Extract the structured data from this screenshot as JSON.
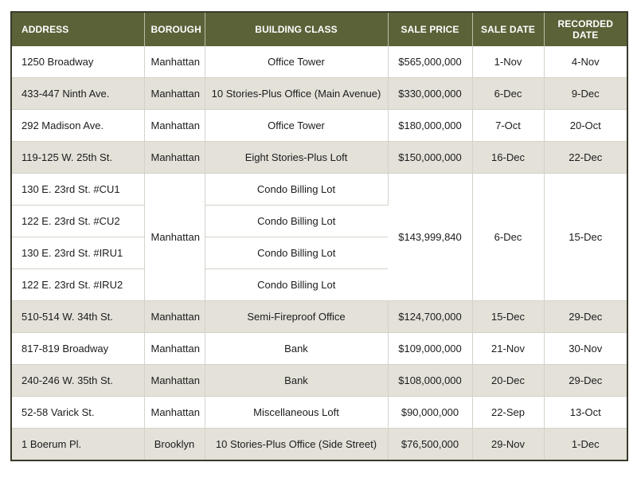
{
  "headers": {
    "address": "ADDRESS",
    "borough": "BOROUGH",
    "building_class": "BUILDING CLASS",
    "sale_price": "SALE PRICE",
    "sale_date": "SALE DATE",
    "recorded_date": "RECORDED DATE"
  },
  "rows": [
    {
      "address": "1250 Broadway",
      "borough": "Manhattan",
      "building_class": "Office Tower",
      "sale_price": "$565,000,000",
      "sale_date": "1-Nov",
      "recorded_date": "4-Nov"
    },
    {
      "address": "433-447 Ninth Ave.",
      "borough": "Manhattan",
      "building_class": "10 Stories-Plus Office (Main Avenue)",
      "sale_price": "$330,000,000",
      "sale_date": "6-Dec",
      "recorded_date": "9-Dec"
    },
    {
      "address": "292 Madison Ave.",
      "borough": "Manhattan",
      "building_class": "Office Tower",
      "sale_price": "$180,000,000",
      "sale_date": "7-Oct",
      "recorded_date": "20-Oct"
    },
    {
      "address": "119-125 W. 25th St.",
      "borough": "Manhattan",
      "building_class": "Eight Stories-Plus Loft",
      "sale_price": "$150,000,000",
      "sale_date": "16-Dec",
      "recorded_date": "22-Dec"
    }
  ],
  "group": {
    "borough": "Manhattan",
    "sale_price": "$143,999,840",
    "sale_date": "6-Dec",
    "recorded_date": "15-Dec",
    "items": [
      {
        "address": "130 E. 23rd St. #CU1",
        "building_class": "Condo Billing Lot"
      },
      {
        "address": "122 E. 23rd St. #CU2",
        "building_class": "Condo Billing Lot"
      },
      {
        "address": "130 E. 23rd St. #IRU1",
        "building_class": "Condo Billing Lot"
      },
      {
        "address": "122 E. 23rd St. #IRU2",
        "building_class": "Condo Billing Lot"
      }
    ]
  },
  "rows_after": [
    {
      "address": "510-514 W. 34th St.",
      "borough": "Manhattan",
      "building_class": "Semi-Fireproof Office",
      "sale_price": "$124,700,000",
      "sale_date": "15-Dec",
      "recorded_date": "29-Dec"
    },
    {
      "address": "817-819 Broadway",
      "borough": "Manhattan",
      "building_class": "Bank",
      "sale_price": "$109,000,000",
      "sale_date": "21-Nov",
      "recorded_date": "30-Nov"
    },
    {
      "address": "240-246 W. 35th St.",
      "borough": "Manhattan",
      "building_class": "Bank",
      "sale_price": "$108,000,000",
      "sale_date": "20-Dec",
      "recorded_date": "29-Dec"
    },
    {
      "address": "52-58 Varick St.",
      "borough": "Manhattan",
      "building_class": "Miscellaneous Loft",
      "sale_price": "$90,000,000",
      "sale_date": "22-Sep",
      "recorded_date": "13-Oct"
    },
    {
      "address": "1 Boerum Pl.",
      "borough": "Brooklyn",
      "building_class": "10 Stories-Plus Office (Side Street)",
      "sale_price": "$76,500,000",
      "sale_date": "29-Nov",
      "recorded_date": "1-Dec"
    }
  ],
  "colors": {
    "header_bg": "#5c6238",
    "row_shade": "#e4e1d9",
    "row_white": "#ffffff"
  }
}
